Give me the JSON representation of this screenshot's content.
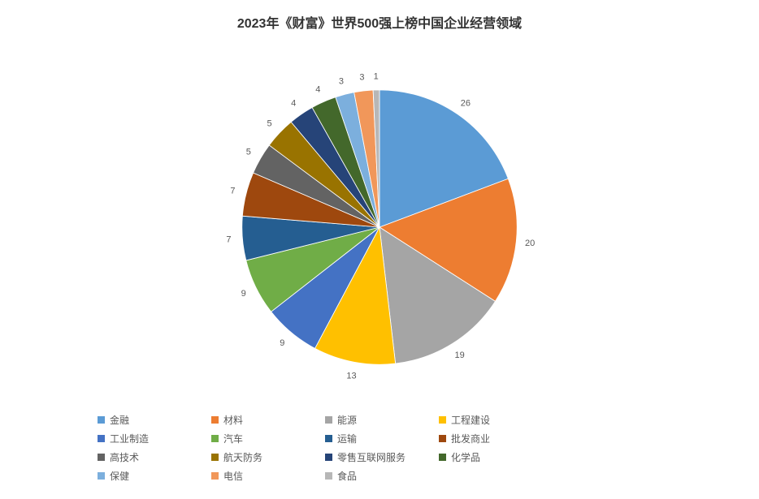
{
  "chart": {
    "type": "pie",
    "title": "2023年《财富》世界500强上榜中国企业经营领域",
    "title_fontsize": 16,
    "title_fontweight": "bold",
    "title_color": "#333333",
    "background_color": "#ffffff",
    "label_fontsize": 13,
    "label_color": "#595959",
    "legend_fontsize": 12,
    "legend_color": "#595959",
    "legend_swatch_size": 9,
    "pie_radius": 200,
    "start_angle_deg": 0,
    "slices": [
      {
        "label": "金融",
        "value": 26,
        "color": "#5b9bd5"
      },
      {
        "label": "材料",
        "value": 20,
        "color": "#ed7d31"
      },
      {
        "label": "能源",
        "value": 19,
        "color": "#a5a5a5"
      },
      {
        "label": "工程建设",
        "value": 13,
        "color": "#ffc000"
      },
      {
        "label": "工业制造",
        "value": 9,
        "color": "#4472c4"
      },
      {
        "label": "汽车",
        "value": 9,
        "color": "#70ad47"
      },
      {
        "label": "运输",
        "value": 7,
        "color": "#255e91"
      },
      {
        "label": "批发商业",
        "value": 7,
        "color": "#9e480e"
      },
      {
        "label": "高技术",
        "value": 5,
        "color": "#636363"
      },
      {
        "label": "航天防务",
        "value": 5,
        "color": "#997300"
      },
      {
        "label": "零售互联网服务",
        "value": 4,
        "color": "#264478"
      },
      {
        "label": "化学品",
        "value": 4,
        "color": "#43682b"
      },
      {
        "label": "保健",
        "value": 3,
        "color": "#7cafdd"
      },
      {
        "label": "电信",
        "value": 3,
        "color": "#f1975a"
      },
      {
        "label": "食品",
        "value": 1,
        "color": "#b7b7b7"
      }
    ]
  }
}
